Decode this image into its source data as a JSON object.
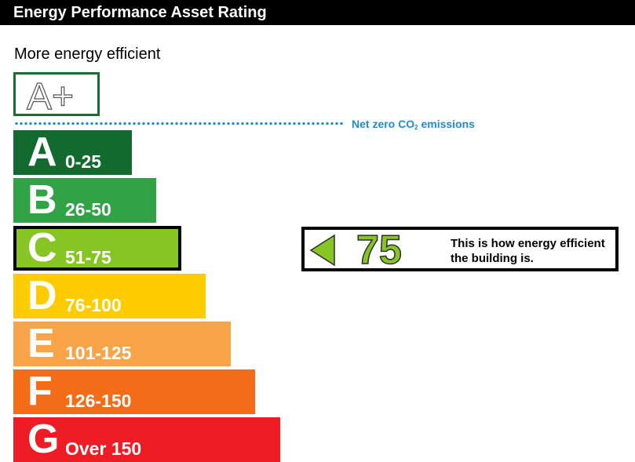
{
  "header": {
    "title": "Energy Performance Asset Rating"
  },
  "scale": {
    "top_label": "More energy efficient",
    "best_band": {
      "letter": "A+",
      "border_color": "#1a6b2e"
    },
    "net_zero": {
      "prefix": "Net zero CO",
      "subscript": "2",
      "suffix": " emissions",
      "color": "#1f8ccc"
    },
    "bands": [
      {
        "letter": "A",
        "range": "0-25",
        "color": "#136a2f"
      },
      {
        "letter": "B",
        "range": "26-50",
        "color": "#32a246"
      },
      {
        "letter": "C",
        "range": "51-75",
        "color": "#87c524"
      },
      {
        "letter": "D",
        "range": "76-100",
        "color": "#ffcc00"
      },
      {
        "letter": "E",
        "range": "101-125",
        "color": "#f9a449"
      },
      {
        "letter": "F",
        "range": "126-150",
        "color": "#f36d19"
      },
      {
        "letter": "G",
        "range": "Over 150",
        "color": "#ee1c24"
      }
    ],
    "current_band": "C"
  },
  "rating": {
    "value": "75",
    "color": "#87c524",
    "description": "This is how energy efficient the building is."
  }
}
